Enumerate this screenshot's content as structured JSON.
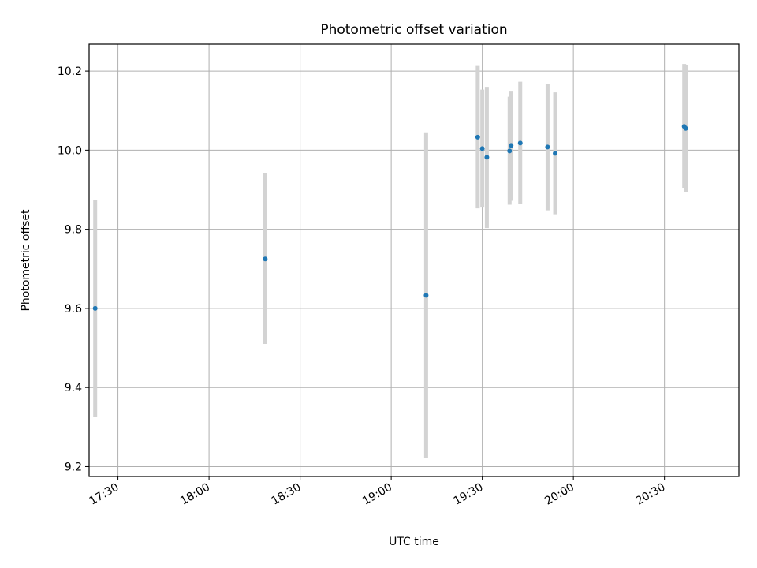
{
  "chart_data": {
    "type": "scatter",
    "title": "Photometric offset variation",
    "xlabel": "UTC time",
    "ylabel": "Photometric offset",
    "x_format": "HH:MM",
    "x_ticks": [
      "17:30",
      "18:00",
      "18:30",
      "19:00",
      "19:30",
      "20:00",
      "20:30"
    ],
    "y_ticks": [
      "9.2",
      "9.4",
      "9.6",
      "9.8",
      "10.0",
      "10.2"
    ],
    "xlim": [
      "17:20:30",
      "20:54:30"
    ],
    "ylim": [
      9.175,
      10.268
    ],
    "grid": true,
    "error_bar_color": "#d3d3d3",
    "point_color": "#1f77b4",
    "points": [
      {
        "x": "17:22:30",
        "y": 9.6,
        "ylow": 9.325,
        "yhigh": 9.875
      },
      {
        "x": "18:18:30",
        "y": 9.725,
        "ylow": 9.51,
        "yhigh": 9.943
      },
      {
        "x": "19:11:30",
        "y": 9.633,
        "ylow": 9.222,
        "yhigh": 10.045
      },
      {
        "x": "19:28:30",
        "y": 10.033,
        "ylow": 9.853,
        "yhigh": 10.213
      },
      {
        "x": "19:30:00",
        "y": 10.004,
        "ylow": 9.855,
        "yhigh": 10.153
      },
      {
        "x": "19:31:30",
        "y": 9.982,
        "ylow": 9.803,
        "yhigh": 10.16
      },
      {
        "x": "19:39:00",
        "y": 9.998,
        "ylow": 9.862,
        "yhigh": 10.135
      },
      {
        "x": "19:39:30",
        "y": 10.012,
        "ylow": 9.872,
        "yhigh": 10.15
      },
      {
        "x": "19:42:30",
        "y": 10.018,
        "ylow": 9.863,
        "yhigh": 10.173
      },
      {
        "x": "19:51:30",
        "y": 10.008,
        "ylow": 9.848,
        "yhigh": 10.168
      },
      {
        "x": "19:54:00",
        "y": 9.992,
        "ylow": 9.838,
        "yhigh": 10.146
      },
      {
        "x": "20:36:30",
        "y": 10.06,
        "ylow": 9.905,
        "yhigh": 10.218
      },
      {
        "x": "20:37:00",
        "y": 10.055,
        "ylow": 9.893,
        "yhigh": 10.215
      }
    ]
  }
}
